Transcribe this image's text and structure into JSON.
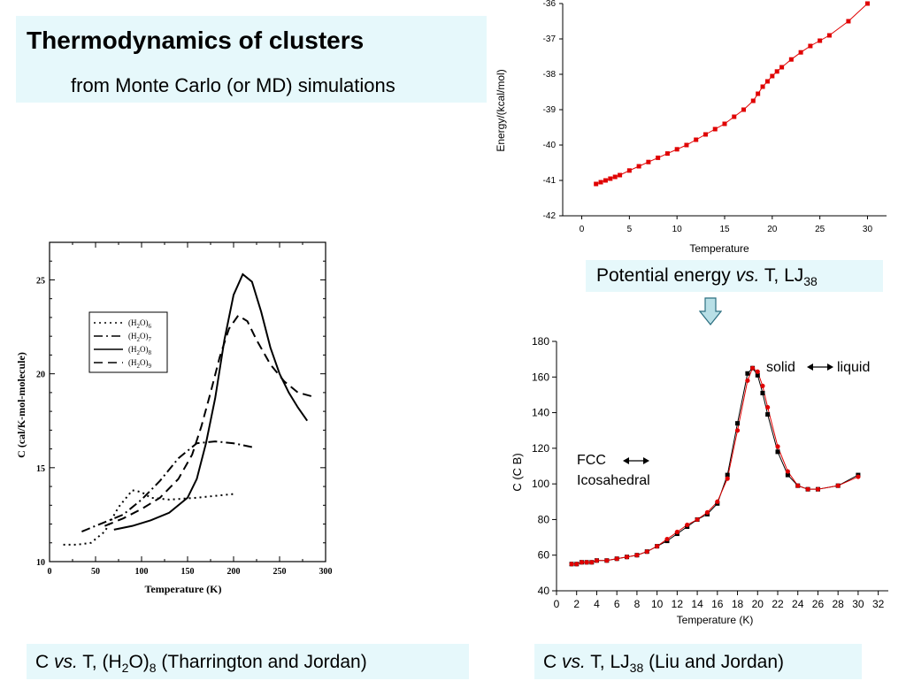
{
  "title": "Thermodynamics of clusters",
  "subtitle": "from Monte Carlo (or MD) simulations",
  "captions": {
    "potential_energy": {
      "a": "Potential energy ",
      "vs": "vs.",
      "b": " T, LJ",
      "sub": "38"
    },
    "h2o": {
      "a": "C ",
      "vs": "vs.",
      "b": " T, (H",
      "sub1": "2",
      "c": "O)",
      "sub2": "8",
      "d": " (Tharrington and Jordan)"
    },
    "lj_liu": {
      "a": "C ",
      "vs": "vs.",
      "b": " T, LJ",
      "sub": "38",
      "c": " (Liu and Jordan)"
    }
  },
  "colors": {
    "title_box": "#e6f8fb",
    "series_red": "#e00000",
    "series_black": "#000000",
    "arrow_fill": "#b8dfe6"
  },
  "chart_data": [
    {
      "id": "energy",
      "type": "line",
      "xlabel": "Temperature",
      "ylabel": "Energy/(kcal/mol)",
      "xlim": [
        -2,
        32
      ],
      "ylim": [
        -42,
        -36
      ],
      "xticks": [
        0,
        5,
        10,
        15,
        20,
        25,
        30
      ],
      "yticks": [
        -42,
        -41,
        -40,
        -39,
        -38,
        -37,
        -36
      ],
      "series": [
        {
          "color": "#e00000",
          "x": [
            1.5,
            2,
            2.5,
            3,
            3.5,
            4,
            5,
            6,
            7,
            8,
            9,
            10,
            11,
            12,
            13,
            14,
            15,
            16,
            17,
            18,
            18.5,
            19,
            19.5,
            20,
            20.5,
            21,
            22,
            23,
            24,
            25,
            26,
            28,
            30
          ],
          "y": [
            -41.1,
            -41.05,
            -41.0,
            -40.95,
            -40.9,
            -40.85,
            -40.72,
            -40.6,
            -40.48,
            -40.36,
            -40.24,
            -40.12,
            -40.0,
            -39.85,
            -39.7,
            -39.55,
            -39.4,
            -39.2,
            -39.0,
            -38.75,
            -38.55,
            -38.35,
            -38.2,
            -38.05,
            -37.92,
            -37.8,
            -37.58,
            -37.38,
            -37.2,
            -37.05,
            -36.9,
            -36.5,
            -36.0
          ]
        }
      ]
    },
    {
      "id": "h2o",
      "type": "line",
      "xlabel": "Temperature (K)",
      "ylabel": "C   (cal/K-mol-molecule)",
      "xlim": [
        0,
        300
      ],
      "ylim": [
        10,
        27
      ],
      "xticks": [
        0,
        50,
        100,
        150,
        200,
        250,
        300
      ],
      "yticks": [
        10,
        15,
        20,
        25
      ],
      "legend": {
        "position": "upper-left",
        "entries": [
          {
            "pre": "(H",
            "sub": "2",
            "mid": "O)",
            "sub2": "6"
          },
          {
            "pre": "(H",
            "sub": "2",
            "mid": "O)",
            "sub2": "7"
          },
          {
            "pre": "(H",
            "sub": "2",
            "mid": "O)",
            "sub2": "8"
          },
          {
            "pre": "(H",
            "sub": "2",
            "mid": "O)",
            "sub2": "9"
          }
        ]
      },
      "series": [
        {
          "dash": "2,4",
          "x": [
            15,
            30,
            45,
            60,
            75,
            90,
            100,
            110,
            130,
            160,
            200
          ],
          "y": [
            10.9,
            10.9,
            11.0,
            11.6,
            12.9,
            13.8,
            13.7,
            13.4,
            13.3,
            13.4,
            13.6
          ]
        },
        {
          "dash": "10,4,2,4",
          "x": [
            35,
            60,
            80,
            100,
            120,
            140,
            160,
            180,
            200,
            220
          ],
          "y": [
            11.6,
            12.1,
            12.5,
            13.3,
            14.3,
            15.5,
            16.3,
            16.4,
            16.3,
            16.1
          ]
        },
        {
          "dash": "",
          "x": [
            70,
            90,
            110,
            130,
            150,
            160,
            170,
            180,
            190,
            200,
            210,
            220,
            230,
            240,
            250,
            260,
            270,
            280
          ],
          "y": [
            11.7,
            11.9,
            12.2,
            12.6,
            13.4,
            14.4,
            16.3,
            18.7,
            21.8,
            24.2,
            25.3,
            24.9,
            23.3,
            21.4,
            20.0,
            19.0,
            18.2,
            17.5
          ]
        },
        {
          "dash": "10,6",
          "x": [
            60,
            80,
            100,
            120,
            140,
            155,
            165,
            175,
            185,
            195,
            205,
            215,
            225,
            240,
            255,
            270,
            285
          ],
          "y": [
            11.9,
            12.3,
            12.8,
            13.4,
            14.4,
            15.7,
            17.2,
            19.0,
            20.9,
            22.4,
            23.1,
            22.8,
            21.8,
            20.5,
            19.6,
            19.0,
            18.8
          ]
        }
      ]
    },
    {
      "id": "heat_capacity",
      "type": "line",
      "xlabel": "Temperature (K)",
      "ylabel": "C  (C  B)",
      "xlim": [
        0,
        33
      ],
      "ylim": [
        40,
        180
      ],
      "xticks": [
        0,
        2,
        4,
        6,
        8,
        10,
        12,
        14,
        16,
        18,
        20,
        22,
        24,
        26,
        28,
        30,
        32
      ],
      "yticks": [
        40,
        60,
        80,
        100,
        120,
        140,
        160,
        180
      ],
      "annotations": {
        "solid_liquid": {
          "left": "solid",
          "right": "liquid"
        },
        "fcc_ico": {
          "top": "FCC",
          "bottom": "Icosahedral"
        }
      },
      "series": [
        {
          "color": "#000000",
          "marker": "square",
          "x": [
            1.5,
            2,
            2.5,
            3,
            3.5,
            4,
            5,
            6,
            7,
            8,
            9,
            10,
            11,
            12,
            13,
            14,
            15,
            16,
            17,
            18,
            19,
            19.5,
            20,
            20.5,
            21,
            22,
            23,
            24,
            25,
            26,
            28,
            30
          ],
          "y": [
            55,
            55,
            56,
            56,
            56,
            57,
            57,
            58,
            59,
            60,
            62,
            65,
            68,
            72,
            76,
            80,
            83,
            89,
            105,
            134,
            162,
            165,
            161,
            151,
            139,
            118,
            105,
            99,
            97,
            97,
            99,
            105
          ]
        },
        {
          "color": "#e00000",
          "marker": "circle",
          "x": [
            1.5,
            2,
            2.5,
            3,
            3.5,
            4,
            5,
            6,
            7,
            8,
            9,
            10,
            11,
            12,
            13,
            14,
            15,
            16,
            17,
            18,
            19,
            19.5,
            20,
            20.5,
            21,
            22,
            23,
            24,
            25,
            26,
            28,
            30
          ],
          "y": [
            55,
            55,
            56,
            56,
            56,
            57,
            57,
            58,
            59,
            60,
            62,
            65,
            69,
            73,
            77,
            80,
            84,
            90,
            103,
            130,
            158,
            165,
            163,
            155,
            143,
            121,
            107,
            99,
            97,
            97,
            99,
            104
          ]
        }
      ]
    }
  ]
}
